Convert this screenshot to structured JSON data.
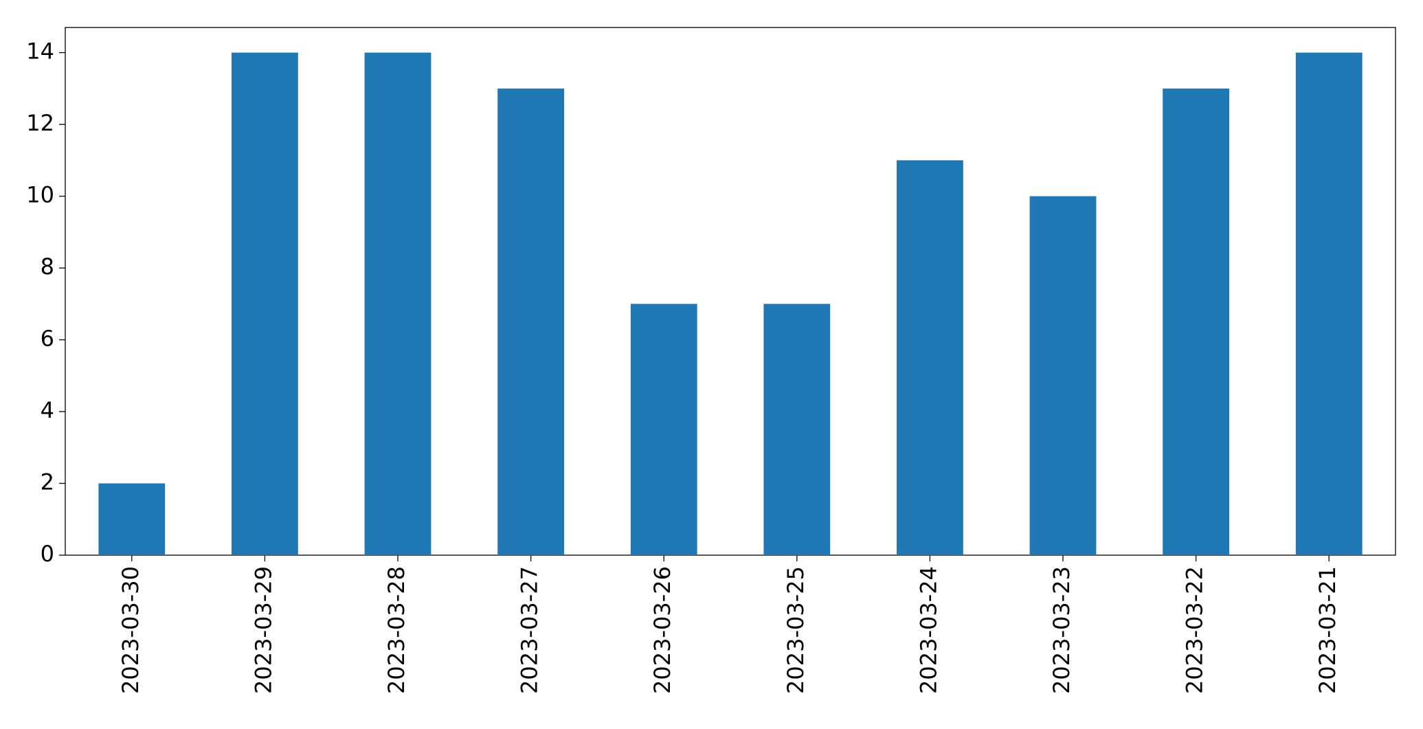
{
  "chart_data": {
    "type": "bar",
    "categories": [
      "2023-03-30",
      "2023-03-29",
      "2023-03-28",
      "2023-03-27",
      "2023-03-26",
      "2023-03-25",
      "2023-03-24",
      "2023-03-23",
      "2023-03-22",
      "2023-03-21"
    ],
    "values": [
      2,
      14,
      14,
      13,
      7,
      7,
      11,
      10,
      13,
      14
    ],
    "color": "#1f77b4",
    "ylim": [
      0,
      14.7
    ],
    "yticks": [
      0,
      2,
      4,
      6,
      8,
      10,
      12,
      14
    ],
    "grid": false
  }
}
